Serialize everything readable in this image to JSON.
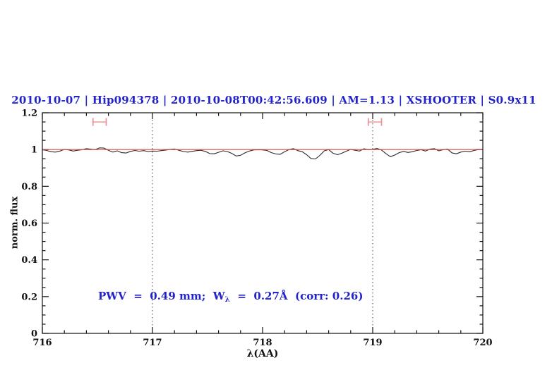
{
  "header": {
    "title": "2010-10-07 | Hip094378 | 2010-10-08T00:42:56.609 | AM=1.13 | XSHOOTER | S0.9x11",
    "color": "#2323cc",
    "fields": {
      "night": "2010-10-07",
      "target": "Hip094378",
      "obs_timestamp": "2010-10-08T00:42:56.609",
      "airmass": "AM=1.13",
      "instrument": "XSHOOTER",
      "slit": "S0.9x11"
    }
  },
  "annotation": {
    "prefix": "PWV  =  0.49 mm;  W",
    "subscript": "λ",
    "suffix": "  =  0.27Å  (corr: 0.26)",
    "color": "#2323cc",
    "values": {
      "pwv_mm": 0.49,
      "equivalent_width_angstrom": 0.27,
      "corr": 0.26
    }
  },
  "chart_data": {
    "type": "line",
    "title": "2010-10-07 | Hip094378 | 2010-10-08T00:42:56.609 | AM=1.13 | XSHOOTER | S0.9x11",
    "xlabel": "λ(AA)",
    "ylabel": "norm. flux",
    "xlim": [
      716,
      720
    ],
    "ylim": [
      0,
      1.2
    ],
    "grid": false,
    "legend": "none",
    "x_ticks": {
      "major_values": [
        716,
        717,
        718,
        719,
        720
      ],
      "labels": [
        "716",
        "717",
        "718",
        "719",
        "720"
      ],
      "minor_step": 0.2
    },
    "y_ticks": {
      "major_values": [
        0,
        0.2,
        0.4,
        0.6,
        0.8,
        1,
        1.2
      ],
      "labels": [
        "0",
        "0.2",
        "0.4",
        "0.6",
        "0.8",
        "1",
        "1.2"
      ],
      "minor_step": 0.05
    },
    "vlines": {
      "x": [
        717,
        719
      ],
      "style": "dotted",
      "color": "#444444"
    },
    "continuum_line": {
      "y": 1.0,
      "color": "#dd4444"
    },
    "band_markers": [
      {
        "x_center": 716.52,
        "x_half_width": 0.06,
        "y": 1.15,
        "color": "#f08f8f"
      },
      {
        "x_center": 719.02,
        "x_half_width": 0.06,
        "y": 1.15,
        "color": "#f08f8f"
      }
    ],
    "series": [
      {
        "name": "observed normalized spectrum",
        "color": "#2b2b2b",
        "x": [
          716.0,
          716.04,
          716.08,
          716.12,
          716.16,
          716.2,
          716.24,
          716.28,
          716.32,
          716.36,
          716.4,
          716.44,
          716.48,
          716.52,
          716.56,
          716.6,
          716.64,
          716.68,
          716.72,
          716.76,
          716.8,
          716.84,
          716.88,
          716.92,
          716.96,
          717.0,
          717.04,
          717.08,
          717.12,
          717.16,
          717.2,
          717.24,
          717.28,
          717.32,
          717.36,
          717.4,
          717.44,
          717.48,
          717.52,
          717.56,
          717.6,
          717.64,
          717.68,
          717.72,
          717.76,
          717.8,
          717.84,
          717.88,
          717.92,
          717.96,
          718.0,
          718.04,
          718.08,
          718.12,
          718.16,
          718.2,
          718.24,
          718.28,
          718.32,
          718.36,
          718.4,
          718.44,
          718.48,
          718.52,
          718.56,
          718.6,
          718.64,
          718.68,
          718.72,
          718.76,
          718.8,
          718.84,
          718.88,
          718.92,
          718.96,
          719.0,
          719.04,
          719.08,
          719.12,
          719.16,
          719.2,
          719.24,
          719.28,
          719.32,
          719.36,
          719.4,
          719.44,
          719.48,
          719.52,
          719.56,
          719.6,
          719.64,
          719.68,
          719.72,
          719.76,
          719.8,
          719.84,
          719.88,
          719.92,
          719.96,
          720.0
        ],
        "y": [
          0.999,
          0.995,
          0.988,
          0.986,
          0.992,
          1.001,
          0.998,
          0.992,
          0.996,
          0.999,
          1.005,
          1.002,
          0.999,
          1.009,
          1.008,
          0.996,
          0.986,
          0.993,
          0.983,
          0.981,
          0.99,
          0.995,
          0.991,
          0.994,
          0.989,
          0.992,
          0.991,
          0.994,
          0.997,
          1.001,
          1.003,
          0.996,
          0.989,
          0.986,
          0.99,
          0.994,
          0.996,
          0.99,
          0.978,
          0.977,
          0.985,
          0.993,
          0.989,
          0.979,
          0.965,
          0.969,
          0.982,
          0.992,
          0.998,
          0.999,
          0.998,
          0.995,
          0.983,
          0.976,
          0.974,
          0.988,
          1.0,
          1.005,
          0.994,
          0.988,
          0.972,
          0.951,
          0.949,
          0.968,
          0.993,
          1.0,
          0.98,
          0.972,
          0.98,
          0.991,
          1.001,
          0.996,
          0.992,
          1.004,
          0.999,
          1.001,
          1.006,
          0.997,
          0.978,
          0.961,
          0.97,
          0.983,
          0.99,
          0.984,
          0.988,
          0.995,
          0.999,
          0.992,
          1.002,
          1.005,
          0.993,
          0.999,
          1.002,
          0.982,
          0.977,
          0.986,
          0.991,
          0.988,
          0.995,
          1.0,
          1.0
        ]
      }
    ]
  }
}
